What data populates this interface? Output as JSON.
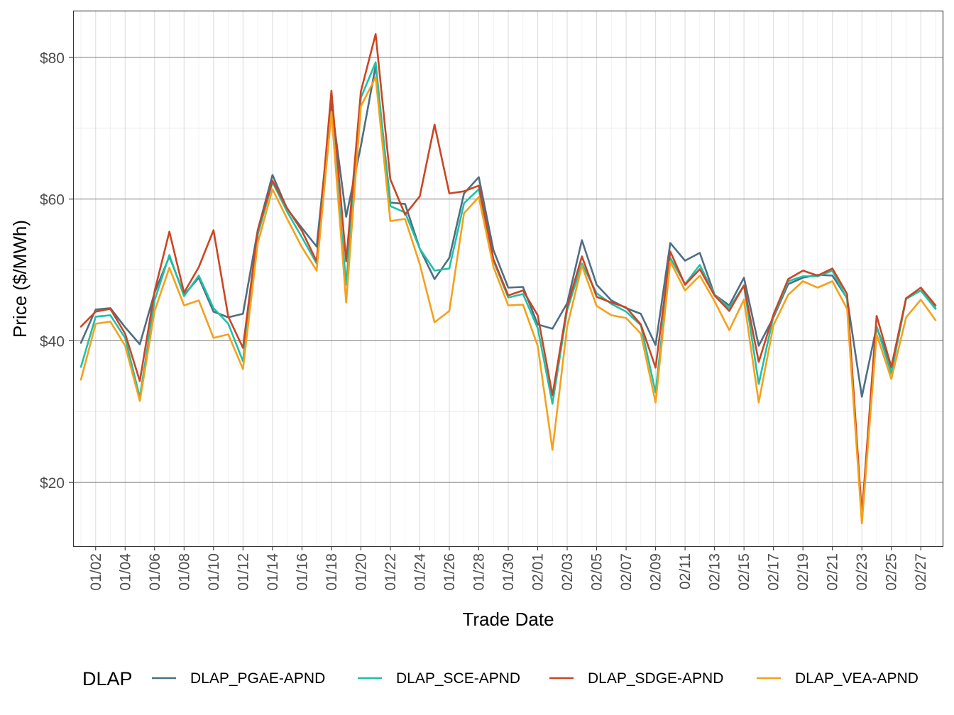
{
  "chart_data": {
    "type": "line",
    "title": "",
    "xlabel": "Trade Date",
    "ylabel": "Price ($/MWh)",
    "ylim": [
      11,
      86.5
    ],
    "yticks": [
      20,
      40,
      60,
      80
    ],
    "ytick_labels": [
      "$20",
      "$40",
      "$60",
      "$80"
    ],
    "xtick_labels": [
      "01/02",
      "01/04",
      "01/06",
      "01/08",
      "01/10",
      "01/12",
      "01/14",
      "01/16",
      "01/18",
      "01/20",
      "01/22",
      "01/24",
      "01/26",
      "01/28",
      "01/30",
      "02/01",
      "02/03",
      "02/05",
      "02/07",
      "02/09",
      "02/11",
      "02/13",
      "02/15",
      "02/17",
      "02/19",
      "02/21",
      "02/23",
      "02/25",
      "02/27"
    ],
    "x": [
      "01/01",
      "01/02",
      "01/03",
      "01/04",
      "01/05",
      "01/06",
      "01/07",
      "01/08",
      "01/09",
      "01/10",
      "01/11",
      "01/12",
      "01/13",
      "01/14",
      "01/15",
      "01/16",
      "01/17",
      "01/18",
      "01/19",
      "01/20",
      "01/21",
      "01/22",
      "01/23",
      "01/24",
      "01/25",
      "01/26",
      "01/27",
      "01/28",
      "01/29",
      "01/30",
      "01/31",
      "02/01",
      "02/02",
      "02/03",
      "02/04",
      "02/05",
      "02/06",
      "02/07",
      "02/08",
      "02/09",
      "02/10",
      "02/11",
      "02/12",
      "02/13",
      "02/14",
      "02/15",
      "02/16",
      "02/17",
      "02/18",
      "02/19",
      "02/20",
      "02/21",
      "02/22",
      "02/23",
      "02/24",
      "02/25",
      "02/26",
      "02/27",
      "02/28"
    ],
    "grid": true,
    "legend": {
      "title": "DLAP",
      "position": "bottom"
    },
    "series": [
      {
        "name": "DLAP_PGAE-APND",
        "color": "#4e6e83",
        "values": [
          39.7,
          44.4,
          44.6,
          41.9,
          39.5,
          46.8,
          51.9,
          46.5,
          48.9,
          44.1,
          43.3,
          43.8,
          55.6,
          63.4,
          58.6,
          55.9,
          53.3,
          73.5,
          57.5,
          67.5,
          78.8,
          59.5,
          59.3,
          53.0,
          48.7,
          51.7,
          60.8,
          63.1,
          52.8,
          47.5,
          47.6,
          42.3,
          41.7,
          45.3,
          54.2,
          47.9,
          45.7,
          44.6,
          43.8,
          39.4,
          53.8,
          51.3,
          52.4,
          46.5,
          45.0,
          48.9,
          39.3,
          43.3,
          48.0,
          48.9,
          49.3,
          49.2,
          46.0,
          32.1,
          42.0,
          36.2,
          46.0,
          47.1,
          44.6
        ]
      },
      {
        "name": "DLAP_SCE-APND",
        "color": "#1ec1a8",
        "values": [
          36.3,
          43.4,
          43.6,
          40.4,
          32.0,
          45.7,
          52.1,
          46.3,
          49.2,
          44.6,
          42.4,
          37.1,
          55.0,
          62.4,
          58.2,
          54.6,
          50.9,
          72.2,
          47.9,
          74.3,
          79.3,
          59.0,
          58.1,
          53.0,
          49.9,
          50.2,
          59.4,
          61.4,
          51.3,
          46.1,
          46.6,
          41.8,
          31.1,
          44.3,
          50.9,
          46.7,
          45.2,
          44.1,
          42.2,
          32.7,
          51.7,
          48.0,
          50.7,
          46.5,
          44.6,
          47.8,
          33.9,
          43.5,
          48.4,
          49.1,
          49.1,
          49.9,
          45.9,
          14.5,
          42.0,
          35.4,
          45.9,
          47.1,
          44.5
        ]
      },
      {
        "name": "DLAP_SDGE-APND",
        "color": "#cc4524",
        "values": [
          42.0,
          44.1,
          44.5,
          41.0,
          34.3,
          47.0,
          55.4,
          46.8,
          50.4,
          55.6,
          43.4,
          39.0,
          55.6,
          62.6,
          58.7,
          55.5,
          51.2,
          75.3,
          51.2,
          75.2,
          83.3,
          62.8,
          57.8,
          60.4,
          70.5,
          60.8,
          61.1,
          61.9,
          51.5,
          46.4,
          47.1,
          43.6,
          32.3,
          44.8,
          51.9,
          46.2,
          45.4,
          44.7,
          42.3,
          36.2,
          52.6,
          47.9,
          50.1,
          46.4,
          44.2,
          47.8,
          37.0,
          43.7,
          48.7,
          49.9,
          49.2,
          50.2,
          46.6,
          15.4,
          43.5,
          36.3,
          46.0,
          47.5,
          45.0
        ]
      },
      {
        "name": "DLAP_VEA-APND",
        "color": "#f5a11b",
        "values": [
          34.5,
          42.4,
          42.7,
          39.3,
          31.5,
          44.2,
          50.3,
          45.0,
          45.7,
          40.4,
          40.9,
          36.0,
          53.8,
          61.4,
          57.2,
          53.2,
          49.9,
          72.3,
          45.4,
          73.1,
          77.2,
          56.9,
          57.2,
          50.8,
          42.6,
          44.2,
          58.0,
          60.3,
          50.4,
          45.0,
          45.1,
          39.3,
          24.6,
          42.0,
          50.6,
          44.9,
          43.6,
          43.2,
          41.0,
          31.3,
          51.2,
          47.1,
          49.2,
          45.6,
          41.5,
          45.8,
          31.3,
          42.2,
          46.5,
          48.4,
          47.5,
          48.4,
          44.5,
          14.2,
          40.9,
          34.6,
          43.3,
          45.8,
          42.9
        ]
      }
    ]
  }
}
